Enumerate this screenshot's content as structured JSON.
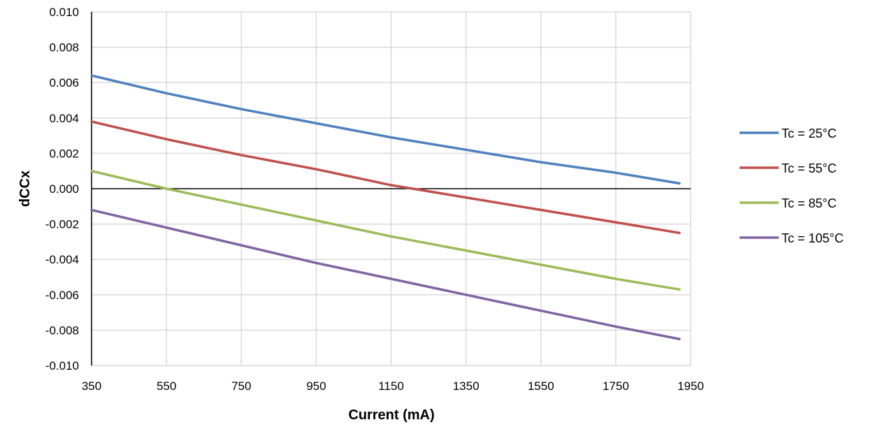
{
  "chart_data": {
    "type": "line",
    "title": "",
    "xlabel": "Current (mA)",
    "ylabel": "dCCx",
    "xlim": [
      350,
      1950
    ],
    "ylim": [
      -0.01,
      0.01
    ],
    "x_ticks": [
      "350",
      "550",
      "750",
      "950",
      "1150",
      "1350",
      "1550",
      "1750",
      "1950"
    ],
    "y_ticks": [
      "0.010",
      "0.008",
      "0.006",
      "0.004",
      "0.002",
      "0.000",
      "-0.002",
      "-0.004",
      "-0.006",
      "-0.008",
      "-0.010"
    ],
    "grid": true,
    "legend_position": "right",
    "x": [
      350,
      550,
      750,
      950,
      1150,
      1350,
      1550,
      1750,
      1920
    ],
    "series": [
      {
        "name": "Tc = 25°C",
        "color": "#4f81bd",
        "values": [
          0.0064,
          0.0054,
          0.0045,
          0.0037,
          0.0029,
          0.0022,
          0.0015,
          0.0009,
          0.0003
        ]
      },
      {
        "name": "Tc = 55°C",
        "color": "#c0504d",
        "values": [
          0.0038,
          0.0028,
          0.0019,
          0.0011,
          0.0002,
          -0.0005,
          -0.0012,
          -0.0019,
          -0.0025
        ]
      },
      {
        "name": "Tc = 85°C",
        "color": "#9bbb59",
        "values": [
          0.001,
          0.0,
          -0.0009,
          -0.0018,
          -0.0027,
          -0.0035,
          -0.0043,
          -0.0051,
          -0.0057
        ]
      },
      {
        "name": "Tc = 105°C",
        "color": "#8064a2",
        "values": [
          -0.0012,
          -0.0022,
          -0.0032,
          -0.0042,
          -0.0051,
          -0.006,
          -0.0069,
          -0.0078,
          -0.0085
        ]
      }
    ]
  }
}
